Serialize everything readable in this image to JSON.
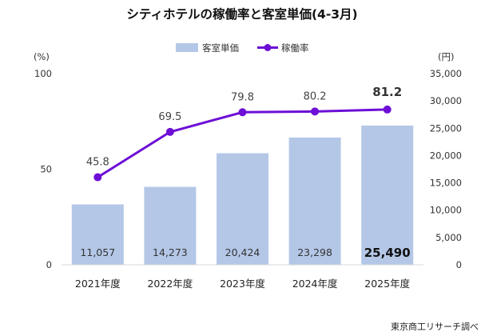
{
  "chart_data": {
    "type": "bar",
    "title": "シティホテルの稼働率と客室単価(4-3月)",
    "categories": [
      "2021年度",
      "2022年度",
      "2023年度",
      "2024年度",
      "2025年度"
    ],
    "series": [
      {
        "name": "客室単価",
        "type": "bar",
        "axis": "right",
        "values": [
          11057,
          14273,
          20424,
          23298,
          25490
        ],
        "value_labels": [
          "11,057",
          "14,273",
          "20,424",
          "23,298",
          "25,490"
        ],
        "color": "#b4c7e7"
      },
      {
        "name": "稼働率",
        "type": "line",
        "axis": "left",
        "values": [
          45.8,
          69.5,
          79.8,
          80.2,
          81.2
        ],
        "value_labels": [
          "45.8",
          "69.5",
          "79.8",
          "80.2",
          "81.2"
        ],
        "color": "#6d0fd6"
      }
    ],
    "highlight_index": 4,
    "left_axis": {
      "unit": "(%)",
      "ylim": [
        0,
        100
      ],
      "ticks": [
        0,
        50,
        100
      ],
      "tick_labels": [
        "0",
        "50",
        "100"
      ]
    },
    "right_axis": {
      "unit": "(円)",
      "ylim": [
        0,
        35000
      ],
      "ticks": [
        0,
        5000,
        10000,
        15000,
        20000,
        25000,
        30000,
        35000
      ],
      "tick_labels": [
        "0",
        "5,000",
        "10,000",
        "15,000",
        "20,000",
        "25,000",
        "30,000",
        "35,000"
      ]
    },
    "grid": false,
    "legend_position": "top-center"
  },
  "source": "東京商工リサーチ調べ"
}
